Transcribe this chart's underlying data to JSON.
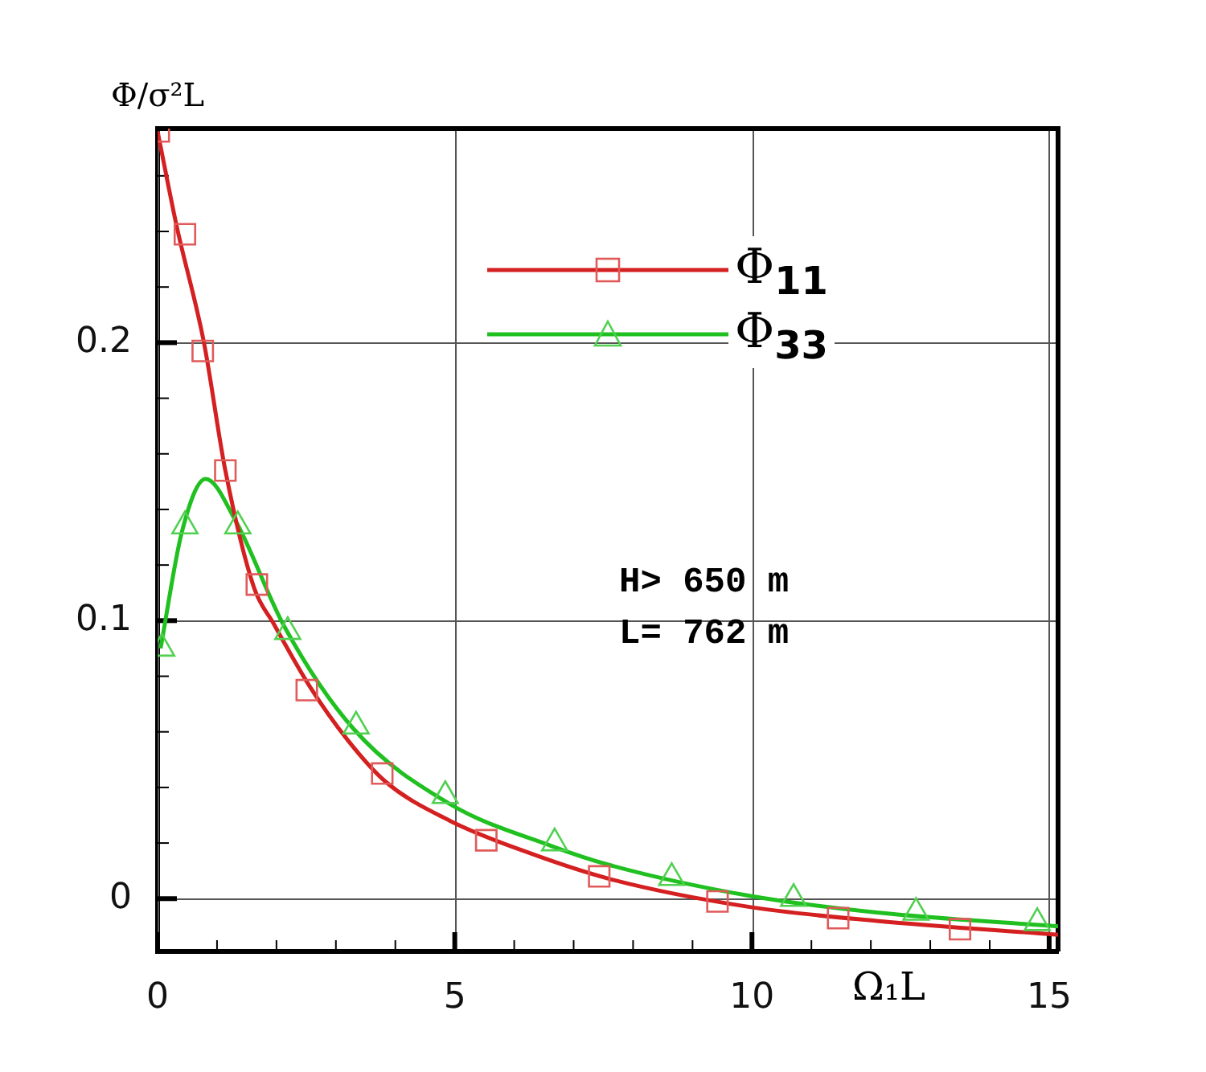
{
  "chart_data": {
    "type": "line",
    "xlabel": "Ω₁L",
    "ylabel": "Φ/σ²L",
    "annotations": [
      "H> 650 m",
      "L= 762 m"
    ],
    "xlim": [
      0,
      15.15
    ],
    "ylim": [
      -0.019,
      0.277
    ],
    "xticks": [
      0,
      {
        "value": 1,
        "label": null
      },
      {
        "value": 2,
        "label": null
      },
      {
        "value": 3,
        "label": null
      },
      {
        "value": 4,
        "label": null
      },
      5,
      {
        "value": 6,
        "label": null
      },
      {
        "value": 7,
        "label": null
      },
      {
        "value": 8,
        "label": null
      },
      {
        "value": 9,
        "label": null
      },
      10,
      {
        "value": 11,
        "label": null
      },
      {
        "value": 12,
        "label": null
      },
      {
        "value": 13,
        "label": null
      },
      {
        "value": 14,
        "label": null
      },
      15
    ],
    "yticks": [
      0,
      {
        "value": 0.02,
        "label": null
      },
      {
        "value": 0.04,
        "label": null
      },
      {
        "value": 0.06,
        "label": null
      },
      {
        "value": 0.08,
        "label": null
      },
      0.1,
      {
        "value": 0.12,
        "label": null
      },
      {
        "value": 0.14,
        "label": null
      },
      {
        "value": 0.16,
        "label": null
      },
      {
        "value": 0.18,
        "label": null
      },
      0.2,
      {
        "value": 0.22,
        "label": null
      },
      {
        "value": 0.24,
        "label": null
      },
      {
        "value": 0.26,
        "label": null
      }
    ],
    "grid": true,
    "legend": "top right",
    "marker": "none",
    "line_style": "solid",
    "series": [
      {
        "name": "Φ$_{11}$",
        "color": "#d42020",
        "x": [
          0,
          0.32,
          0.78,
          1.14,
          1.62,
          1.95,
          2.57,
          3.2,
          3.84,
          4.92,
          6.18,
          7.62,
          9.96,
          12.1,
          15.15
        ],
        "values": [
          0.276,
          0.242,
          0.2,
          0.154,
          0.112,
          0.099,
          0.076,
          0.057,
          0.042,
          0.028,
          0.017,
          0.007,
          -0.003,
          -0.008,
          -0.013
        ]
      },
      {
        "type": "scatter",
        "color": "#e05a5a",
        "marker": "square",
        "x": [
          0.02,
          0.46,
          0.76,
          1.14,
          1.67,
          2.51,
          3.78,
          5.53,
          7.43,
          9.42,
          11.45,
          13.5
        ],
        "values": [
          0.276,
          0.239,
          0.197,
          0.154,
          0.113,
          0.075,
          0.045,
          0.021,
          0.008,
          -0.001,
          -0.007,
          -0.011
        ]
      },
      {
        "name": "Φ$_{33}$",
        "color": "#20c020",
        "x": [
          0.05,
          0.41,
          0.81,
          1.31,
          2.13,
          3.3,
          4.92,
          6.62,
          7.62,
          9.96,
          12.1,
          15.15
        ],
        "values": [
          0.09,
          0.132,
          0.151,
          0.136,
          0.098,
          0.061,
          0.034,
          0.019,
          0.012,
          0.001,
          -0.005,
          -0.01
        ]
      },
      {
        "type": "scatter",
        "color": "#50d050",
        "marker": "triangle",
        "x": [
          0.07,
          0.46,
          1.35,
          2.19,
          3.34,
          4.84,
          6.68,
          8.65,
          10.7,
          12.76,
          14.8
        ],
        "values": [
          0.09,
          0.134,
          0.134,
          0.096,
          0.062,
          0.037,
          0.02,
          0.0075,
          0,
          -0.005,
          -0.0087
        ]
      }
    ]
  }
}
